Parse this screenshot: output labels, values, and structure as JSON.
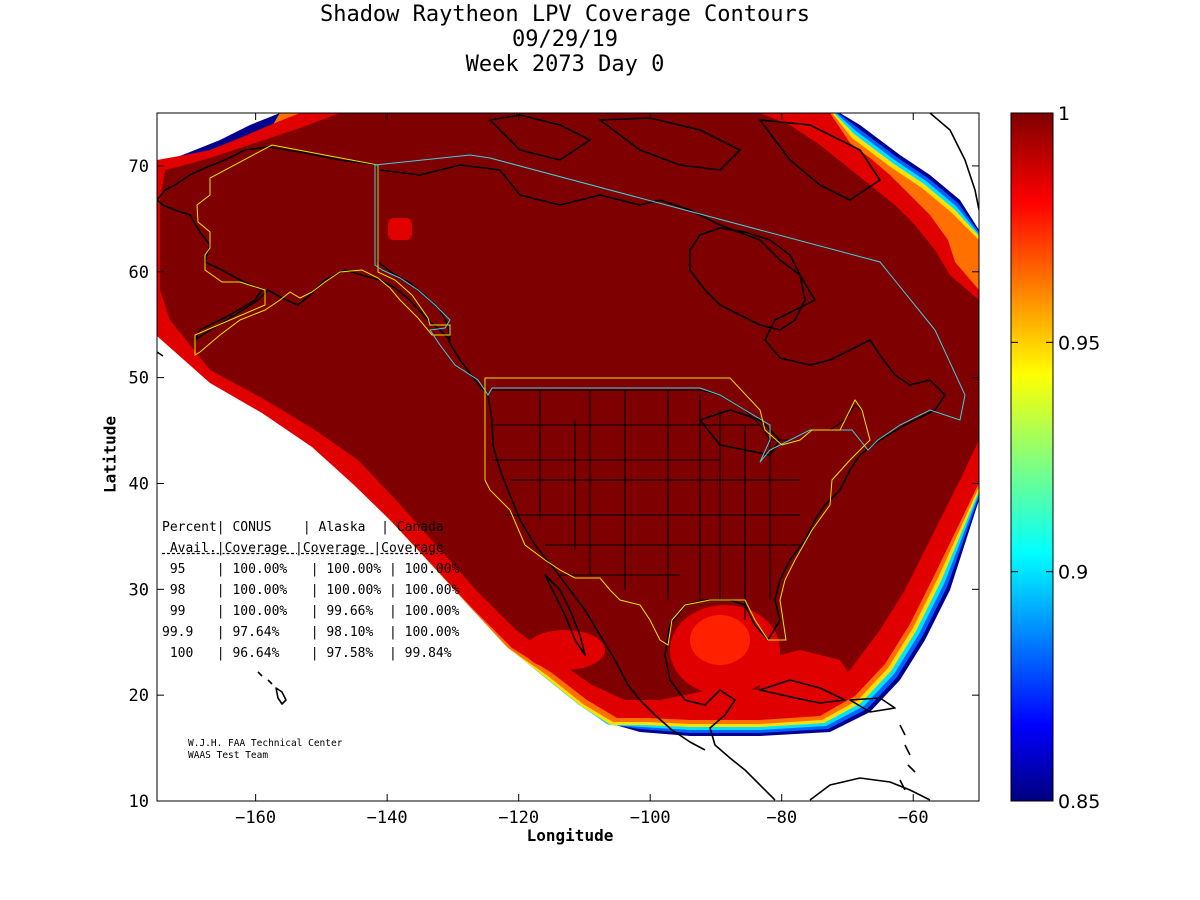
{
  "title_lines": [
    "Shadow Raytheon LPV Coverage Contours",
    "09/29/19",
    "Week 2073 Day 0"
  ],
  "chart_data": {
    "type": "heatmap",
    "title": "Shadow Raytheon LPV Coverage Contours",
    "subtitle_lines": [
      "09/29/19",
      "Week 2073 Day 0"
    ],
    "xlabel": "Longitude",
    "ylabel": "Latitude",
    "xlim": [
      -175,
      -50
    ],
    "ylim": [
      10,
      75
    ],
    "x_ticks": [
      -160,
      -140,
      -120,
      -100,
      -80,
      -60
    ],
    "y_ticks": [
      10,
      20,
      30,
      40,
      50,
      60,
      70
    ],
    "colorbar": {
      "range": [
        0.85,
        1
      ],
      "ticks": [
        0.85,
        0.9,
        0.95,
        1
      ],
      "tick_labels": [
        "0.85",
        "0.9",
        "0.95",
        "1"
      ],
      "colormap": "jet"
    },
    "coverage_table": {
      "headers": [
        [
          "Percent",
          "CONUS",
          "Alaska",
          "Canada"
        ],
        [
          "Avail.",
          "Coverage",
          "Coverage",
          "Coverage"
        ]
      ],
      "rows": [
        {
          "avail": "95",
          "conus": "100.00%",
          "alaska": "100.00%",
          "canada": "100.00%"
        },
        {
          "avail": "98",
          "conus": "100.00%",
          "alaska": "100.00%",
          "canada": "100.00%"
        },
        {
          "avail": "99",
          "conus": "100.00%",
          "alaska": "99.66%",
          "canada": "100.00%"
        },
        {
          "avail": "99.9",
          "conus": "97.64%",
          "alaska": "98.10%",
          "canada": "100.00%"
        },
        {
          "avail": "100",
          "conus": "96.64%",
          "alaska": "97.58%",
          "canada": "99.84%"
        }
      ]
    },
    "credits": [
      "W.J.H. FAA Technical Center",
      "WAAS Test Team"
    ]
  },
  "colors": {
    "max_coverage": "#7f0000",
    "service_boundary_conus": "#e6e600",
    "service_boundary_canada": "#40d0e0",
    "coastlines": "#000000"
  }
}
